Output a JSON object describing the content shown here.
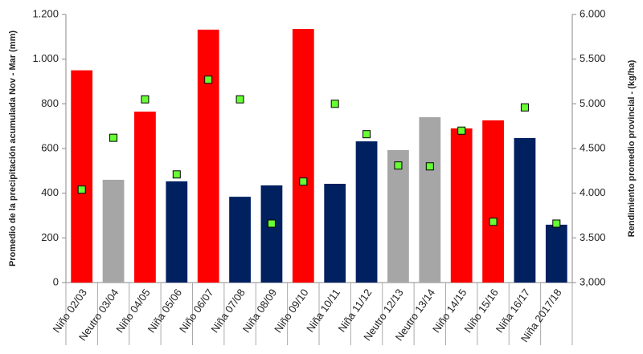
{
  "chart_data": {
    "type": "bar",
    "y_label": "Promedio de la precipitación acumulada Nov - Mar (mm)",
    "y2_label": "Rendimiento promedio provincial - (kg/ha)",
    "categories": [
      "Niño 02/03",
      "Neutro 03/04",
      "Niño 04/05",
      "Niña 05/06",
      "Niño 06/07",
      "Niña 07/08",
      "Niña 08/09",
      "Niño 09/10",
      "Niña 10/11",
      "Niña 11/12",
      "Neutro 12/13",
      "Neutro 13/14",
      "Niño 14/15",
      "Niño 15/16",
      "Niña 16/17",
      "Niña 2017/18"
    ],
    "series": [
      {
        "type": "bar",
        "colors": [
          "#ff0000",
          "#a6a6a6",
          "#ff0000",
          "#002060",
          "#ff0000",
          "#002060",
          "#002060",
          "#ff0000",
          "#002060",
          "#002060",
          "#a6a6a6",
          "#a6a6a6",
          "#ff0000",
          "#ff0000",
          "#002060",
          "#002060"
        ],
        "values": [
          950,
          460,
          765,
          453,
          1132,
          384,
          435,
          1135,
          442,
          632,
          593,
          740,
          690,
          726,
          647,
          259
        ]
      },
      {
        "type": "scatter",
        "axis": "y2",
        "color": "#66ff33",
        "values": [
          4040,
          4620,
          5050,
          4210,
          5270,
          5050,
          3660,
          4130,
          5000,
          4660,
          4310,
          4300,
          4700,
          3680,
          4960,
          3660
        ]
      }
    ],
    "ylim": [
      0,
      1200
    ],
    "yticks": [
      0,
      200,
      400,
      600,
      800,
      {
        "value": 1000,
        "label": "1.000"
      },
      {
        "value": 1200,
        "label": "1.200"
      }
    ],
    "y2lim": [
      3000,
      6000
    ],
    "y2ticks": [
      {
        "value": 3000,
        "label": "3,000"
      },
      {
        "value": 3500,
        "label": "3.500"
      },
      {
        "value": 4000,
        "label": "4.000"
      },
      {
        "value": 4500,
        "label": "4.500"
      },
      {
        "value": 5000,
        "label": "5.000"
      },
      {
        "value": 5500,
        "label": "5.500"
      },
      {
        "value": 6000,
        "label": "6.000"
      }
    ]
  }
}
